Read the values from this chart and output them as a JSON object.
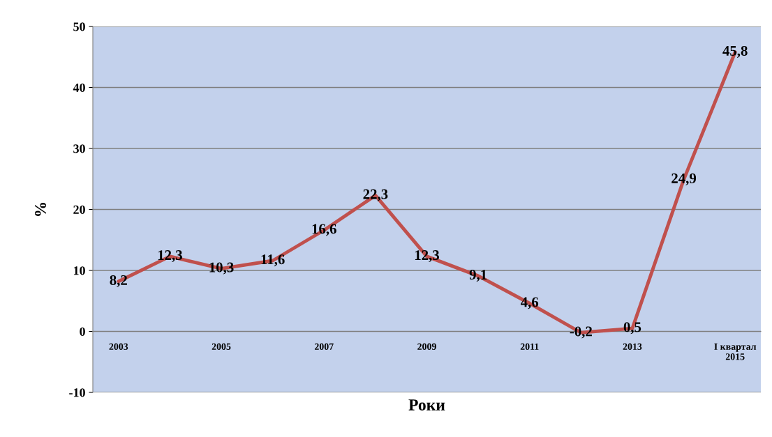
{
  "chart_data": {
    "type": "line",
    "xlabel": "Роки",
    "ylabel": "%",
    "categories": [
      "2003",
      null,
      "2005",
      null,
      "2007",
      null,
      "2009",
      null,
      "2011",
      null,
      "2013",
      null,
      "I квартал\n2015"
    ],
    "series": [
      {
        "color": "#c0504d",
        "values": [
          8.2,
          12.3,
          10.3,
          11.6,
          16.6,
          22.3,
          12.3,
          9.1,
          4.6,
          -0.2,
          0.5,
          24.9,
          45.8
        ],
        "value_labels": [
          "8,2",
          "12,3",
          "10,3",
          "11,6",
          "16,6",
          "22,3",
          "12,3",
          "9,1",
          "4,6",
          "-0,2",
          "0,5",
          "24,9",
          "45,8"
        ]
      }
    ],
    "ylim": [
      -10,
      50
    ],
    "yticks": [
      -10,
      0,
      10,
      20,
      30,
      40,
      50
    ],
    "grid": "y",
    "legend": false
  }
}
